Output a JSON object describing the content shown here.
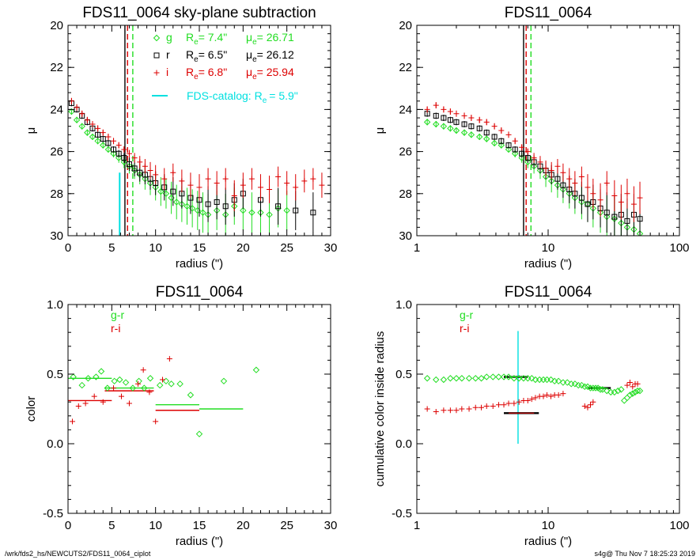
{
  "footer": {
    "left": "/wrk/fds2_hs/NEWCUTS2/FDS11_0064_ciplot",
    "right": "s4g@  Thu Nov  7 18:25:23 2019"
  },
  "colors": {
    "g": "#22dd22",
    "r": "#000000",
    "i": "#dd0000",
    "catalog": "#00e0e0"
  },
  "chart_data": [
    {
      "type": "scatter",
      "title": "FDS11_0064 sky-plane subtraction",
      "xlabel": "radius (\")",
      "ylabel": "μ",
      "xlim": [
        0,
        30
      ],
      "ylim": [
        30,
        20
      ],
      "xscale": "linear",
      "xticks": [
        "0",
        "5",
        "10",
        "15",
        "20",
        "25",
        "30"
      ],
      "yticks": [
        "20",
        "22",
        "24",
        "26",
        "28",
        "30"
      ],
      "legend": [
        {
          "band": "g",
          "marker": "diamond",
          "re_label": "R",
          "re_sub": "e",
          "re_value": "= 7.4\"",
          "mu_label": "μ",
          "mu_sub": "e",
          "mu_value": "= 26.71"
        },
        {
          "band": "r",
          "marker": "square",
          "re_label": "R",
          "re_sub": "e",
          "re_value": "= 6.5\"",
          "mu_label": "μ",
          "mu_sub": "e",
          "mu_value": "= 26.12"
        },
        {
          "band": "i",
          "marker": "plus",
          "re_label": "R",
          "re_sub": "e",
          "re_value": "= 6.8\"",
          "mu_label": "μ",
          "mu_sub": "e",
          "mu_value": "= 25.94"
        }
      ],
      "catalog_legend": {
        "text": "FDS-catalog: R",
        "sub": "e",
        "value": "= 5.9\""
      },
      "vlines": [
        {
          "band": "r",
          "x": 6.5,
          "style": "solid"
        },
        {
          "band": "i",
          "x": 6.8,
          "style": "dashed"
        },
        {
          "band": "g",
          "x": 7.4,
          "style": "dashed"
        },
        {
          "band": "catalog",
          "x": 5.9,
          "style": "solid",
          "from_y": 30,
          "to_y": 27.0
        }
      ],
      "series": [
        {
          "band": "g",
          "marker": "diamond",
          "x": [
            0.4,
            1.0,
            1.6,
            2.2,
            2.8,
            3.4,
            4.0,
            4.6,
            5.2,
            5.8,
            6.4,
            7.0,
            7.6,
            8.2,
            8.8,
            9.4,
            10.0,
            10.6,
            11.2,
            11.8,
            12.4,
            13.0,
            13.6,
            14.2,
            14.8,
            15.4,
            16.0,
            17.0,
            18.0,
            19.0,
            20.0,
            21.0,
            22.0,
            23.0,
            24.0,
            25.0
          ],
          "y": [
            24.1,
            24.5,
            24.8,
            25.1,
            25.3,
            25.5,
            25.7,
            25.9,
            26.1,
            26.3,
            26.5,
            26.7,
            26.9,
            27.1,
            27.3,
            27.5,
            27.7,
            27.9,
            28.0,
            28.2,
            28.4,
            28.5,
            28.6,
            28.7,
            28.8,
            28.9,
            29.0,
            28.8,
            29.0,
            28.6,
            28.8,
            28.9,
            28.9,
            29.0,
            28.7,
            28.8
          ]
        },
        {
          "band": "r",
          "marker": "square",
          "x": [
            0.4,
            1.0,
            1.6,
            2.2,
            2.8,
            3.4,
            4.0,
            4.6,
            5.2,
            5.8,
            6.4,
            7.0,
            7.6,
            8.2,
            8.8,
            9.4,
            10.0,
            11.0,
            12.0,
            13.0,
            14.0,
            15.0,
            16.0,
            17.0,
            18.0,
            19.0,
            20.0,
            22.0,
            24.0,
            26.0,
            28.0
          ],
          "y": [
            23.7,
            24.0,
            24.3,
            24.6,
            24.9,
            25.2,
            25.4,
            25.6,
            25.9,
            26.1,
            26.3,
            26.6,
            26.8,
            27.0,
            27.1,
            27.3,
            27.5,
            27.7,
            27.9,
            28.0,
            28.2,
            28.3,
            28.5,
            28.4,
            28.6,
            28.3,
            28.0,
            28.3,
            28.6,
            28.8,
            28.9
          ]
        },
        {
          "band": "i",
          "marker": "plus",
          "x": [
            0.4,
            1.0,
            1.6,
            2.2,
            2.8,
            3.4,
            4.0,
            4.6,
            5.2,
            5.8,
            6.4,
            7.0,
            7.6,
            8.2,
            8.8,
            9.4,
            10.0,
            11.0,
            12.0,
            13.0,
            14.0,
            15.0,
            16.0,
            17.0,
            18.0,
            19.0,
            20.0,
            21.0,
            22.0,
            23.0,
            24.0,
            25.0,
            26.0,
            27.0,
            28.0,
            29.0
          ],
          "y": [
            23.6,
            23.9,
            24.2,
            24.5,
            24.7,
            24.9,
            25.1,
            25.3,
            25.5,
            25.7,
            25.9,
            26.1,
            26.3,
            26.5,
            26.7,
            26.9,
            27.1,
            27.3,
            27.0,
            27.4,
            27.6,
            27.7,
            27.3,
            27.5,
            27.3,
            28.1,
            27.6,
            27.3,
            27.7,
            27.8,
            27.2,
            27.5,
            27.7,
            27.4,
            27.3,
            27.6
          ]
        }
      ]
    },
    {
      "type": "scatter",
      "title": "FDS11_0064",
      "xlabel": "radius (\")",
      "ylabel": "μ",
      "xlim": [
        1,
        100
      ],
      "ylim": [
        30,
        20
      ],
      "xscale": "log",
      "xticks": [
        "1",
        "10",
        "100"
      ],
      "yticks": [
        "20",
        "22",
        "24",
        "26",
        "28",
        "30"
      ],
      "vlines": [
        {
          "band": "r",
          "x": 6.5,
          "style": "solid"
        },
        {
          "band": "i",
          "x": 6.8,
          "style": "dashed"
        },
        {
          "band": "g",
          "x": 7.4,
          "style": "dashed"
        }
      ],
      "series": [
        {
          "band": "g",
          "marker": "diamond",
          "x": [
            1.2,
            1.4,
            1.6,
            1.8,
            2.0,
            2.3,
            2.6,
            3.0,
            3.4,
            3.9,
            4.4,
            5.0,
            5.6,
            6.3,
            7.0,
            7.8,
            8.7,
            9.6,
            10.6,
            11.8,
            13.0,
            14.5,
            16.0,
            18.0,
            20.0,
            22.0,
            25.0,
            28.0,
            32.0,
            36.0,
            40.0,
            45.0,
            50.0
          ],
          "y": [
            24.6,
            24.7,
            24.8,
            24.9,
            25.0,
            25.1,
            25.2,
            25.3,
            25.4,
            25.6,
            25.7,
            25.9,
            26.1,
            26.3,
            26.5,
            26.7,
            26.9,
            27.2,
            27.4,
            27.6,
            27.8,
            28.0,
            28.2,
            28.4,
            28.5,
            28.7,
            28.9,
            29.1,
            29.2,
            29.4,
            29.6,
            29.7,
            29.9
          ]
        },
        {
          "band": "r",
          "marker": "square",
          "x": [
            1.2,
            1.4,
            1.6,
            1.8,
            2.0,
            2.3,
            2.6,
            3.0,
            3.4,
            3.9,
            4.4,
            5.0,
            5.6,
            6.3,
            7.0,
            7.8,
            8.7,
            9.6,
            10.6,
            11.8,
            13.0,
            14.5,
            16.0,
            18.0,
            20.0,
            22.0,
            25.0,
            28.0,
            32.0,
            36.0,
            40.0,
            45.0,
            50.0
          ],
          "y": [
            24.2,
            24.3,
            24.4,
            24.5,
            24.6,
            24.7,
            24.8,
            24.9,
            25.1,
            25.3,
            25.5,
            25.7,
            25.9,
            26.1,
            26.3,
            26.5,
            26.7,
            26.9,
            27.1,
            27.3,
            27.6,
            27.8,
            28.0,
            28.2,
            28.5,
            28.4,
            28.7,
            28.9,
            29.1,
            29.0,
            29.3,
            29.0,
            29.2
          ]
        },
        {
          "band": "i",
          "marker": "plus",
          "x": [
            1.2,
            1.4,
            1.6,
            1.8,
            2.0,
            2.3,
            2.6,
            3.0,
            3.4,
            3.9,
            4.4,
            5.0,
            5.6,
            6.3,
            7.0,
            7.8,
            8.7,
            9.6,
            10.6,
            11.8,
            13.0,
            14.5,
            16.0,
            18.0,
            20.0,
            22.0,
            25.0,
            28.0,
            32.0,
            36.0,
            40.0,
            45.0,
            50.0
          ],
          "y": [
            24.0,
            23.8,
            24.0,
            24.1,
            24.2,
            24.3,
            24.4,
            24.5,
            24.6,
            24.8,
            25.0,
            25.2,
            25.5,
            25.8,
            26.0,
            26.3,
            26.5,
            26.8,
            26.9,
            26.7,
            27.0,
            27.3,
            27.5,
            27.2,
            27.7,
            28.0,
            28.3,
            27.5,
            28.1,
            28.4,
            28.0,
            28.5,
            28.2
          ]
        }
      ]
    },
    {
      "type": "scatter",
      "title": "FDS11_0064",
      "xlabel": "radius (\")",
      "ylabel": "color",
      "xlim": [
        0,
        30
      ],
      "ylim": [
        -0.5,
        1.0
      ],
      "xscale": "linear",
      "xticks": [
        "0",
        "5",
        "10",
        "15",
        "20",
        "25",
        "30"
      ],
      "yticks": [
        "-0.5",
        "0.0",
        "0.5",
        "1.0"
      ],
      "legend_text": [
        {
          "band": "g",
          "text": "g-r"
        },
        {
          "band": "i",
          "text": "r-i"
        }
      ],
      "series": [
        {
          "band": "g",
          "name": "g-r",
          "marker": "diamond",
          "x": [
            0.6,
            1.6,
            2.3,
            3.2,
            3.8,
            4.5,
            5.3,
            5.9,
            6.6,
            7.4,
            8.1,
            8.7,
            9.4,
            10.5,
            11.2,
            11.8,
            12.8,
            14.0,
            15.0,
            17.8,
            21.5
          ],
          "y": [
            0.48,
            0.42,
            0.47,
            0.48,
            0.52,
            0.4,
            0.45,
            0.46,
            0.44,
            0.4,
            0.45,
            0.4,
            0.47,
            0.42,
            0.45,
            0.43,
            0.43,
            0.35,
            0.07,
            0.45,
            0.53
          ]
        },
        {
          "band": "i",
          "name": "r-i",
          "marker": "plus",
          "x": [
            0.5,
            1.2,
            2.0,
            3.0,
            4.0,
            5.2,
            6.1,
            7.0,
            8.0,
            8.6,
            9.3,
            10.0,
            10.8,
            11.6
          ],
          "y": [
            0.16,
            0.27,
            0.29,
            0.34,
            0.3,
            0.4,
            0.34,
            0.29,
            0.43,
            0.53,
            0.37,
            0.16,
            0.46,
            0.61
          ]
        }
      ],
      "segments": [
        {
          "band": "g",
          "x": [
            0,
            5
          ],
          "y": 0.47
        },
        {
          "band": "g",
          "x": [
            4.2,
            9.8
          ],
          "y": 0.4
        },
        {
          "band": "g",
          "x": [
            10,
            15
          ],
          "y": 0.28
        },
        {
          "band": "g",
          "x": [
            15,
            20
          ],
          "y": 0.25
        },
        {
          "band": "i",
          "x": [
            0,
            5
          ],
          "y": 0.31
        },
        {
          "band": "i",
          "x": [
            4.2,
            9.8
          ],
          "y": 0.38
        },
        {
          "band": "i",
          "x": [
            10,
            15
          ],
          "y": 0.24
        }
      ]
    },
    {
      "type": "scatter",
      "title": "FDS11_0064",
      "xlabel": "radius (\")",
      "ylabel": "cumulative color inside radius",
      "xlim": [
        1,
        100
      ],
      "ylim": [
        -0.5,
        1.0
      ],
      "xscale": "log",
      "xticks": [
        "1",
        "10",
        "100"
      ],
      "yticks": [
        "-0.5",
        "0.0",
        "0.5",
        "1.0"
      ],
      "legend_text": [
        {
          "band": "g",
          "text": "g-r"
        },
        {
          "band": "i",
          "text": "r-i"
        }
      ],
      "catalog_line": {
        "x": 5.9,
        "y": [
          0.0,
          0.81
        ]
      },
      "series": [
        {
          "band": "g",
          "name": "g-r",
          "marker": "diamond",
          "x": [
            1.2,
            1.4,
            1.6,
            1.8,
            2.0,
            2.2,
            2.5,
            2.8,
            3.1,
            3.4,
            3.8,
            4.2,
            4.6,
            5.0,
            5.5,
            6.0,
            6.5,
            7.0,
            7.5,
            8.0,
            8.6,
            9.2,
            9.8,
            10.5,
            11.2,
            12.0,
            13.0,
            14.0,
            15.0,
            16.0,
            17.0,
            18.0,
            19.0,
            20.0,
            21.0,
            22.0,
            23.0,
            24.0,
            25.0,
            26.0,
            28.0,
            30.0,
            32.0,
            34.0,
            36.0,
            38.0,
            40.0,
            42.0,
            44.0,
            46.0,
            48.0,
            50.0
          ],
          "y": [
            0.47,
            0.46,
            0.46,
            0.47,
            0.47,
            0.47,
            0.47,
            0.47,
            0.47,
            0.48,
            0.48,
            0.48,
            0.48,
            0.48,
            0.47,
            0.47,
            0.47,
            0.47,
            0.47,
            0.46,
            0.46,
            0.46,
            0.46,
            0.46,
            0.45,
            0.45,
            0.44,
            0.44,
            0.43,
            0.43,
            0.42,
            0.42,
            0.41,
            0.41,
            0.4,
            0.4,
            0.4,
            0.4,
            0.39,
            0.39,
            0.38,
            0.37,
            0.37,
            0.38,
            0.39,
            0.31,
            0.33,
            0.35,
            0.36,
            0.37,
            0.38,
            0.38
          ]
        },
        {
          "band": "i",
          "name": "r-i",
          "marker": "plus",
          "x": [
            1.2,
            1.4,
            1.6,
            1.8,
            2.0,
            2.2,
            2.5,
            2.8,
            3.1,
            3.4,
            3.8,
            4.2,
            4.6,
            5.0,
            5.5,
            6.0,
            6.5,
            7.0,
            7.5,
            8.0,
            8.6,
            9.2,
            9.8,
            10.5,
            11.2,
            12.0,
            13.0,
            19.0,
            20.0,
            21.0,
            22.0,
            40.0,
            42.0,
            44.0,
            46.0,
            48.0
          ],
          "y": [
            0.25,
            0.23,
            0.24,
            0.24,
            0.24,
            0.25,
            0.25,
            0.26,
            0.26,
            0.27,
            0.27,
            0.28,
            0.28,
            0.29,
            0.29,
            0.3,
            0.31,
            0.31,
            0.32,
            0.33,
            0.34,
            0.34,
            0.35,
            0.34,
            0.35,
            0.35,
            0.36,
            0.27,
            0.26,
            0.28,
            0.3,
            0.42,
            0.44,
            0.41,
            0.43,
            0.43
          ]
        }
      ],
      "segments": [
        {
          "band": "g",
          "x": [
            4.6,
            7.0
          ],
          "y": 0.48
        },
        {
          "band": "g",
          "x": [
            20.0,
            30.0
          ],
          "y": 0.4
        },
        {
          "band": "i",
          "x": [
            4.6,
            8.5
          ],
          "y": 0.22
        }
      ]
    }
  ]
}
